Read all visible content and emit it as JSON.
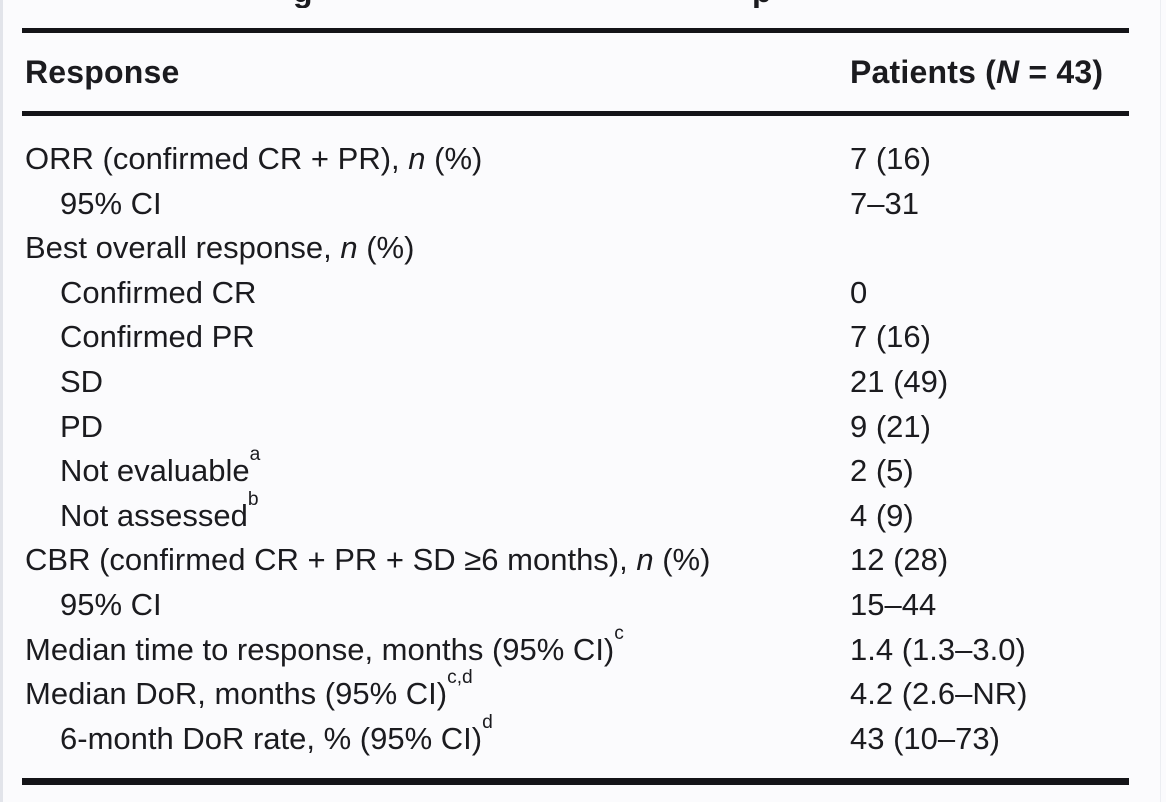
{
  "colors": {
    "background": "#fbfbfd",
    "text": "#1b1b1f",
    "rule": "#141418"
  },
  "cropped_title": {
    "fragment_1": "g",
    "fragment_2": "p"
  },
  "table": {
    "header": {
      "response": [
        {
          "t": "Response"
        }
      ],
      "patients": [
        {
          "t": "Patients ("
        },
        {
          "t": "N",
          "i": true
        },
        {
          "t": " = 43)"
        }
      ]
    },
    "rows": [
      {
        "indent": 0,
        "label": [
          {
            "t": "ORR (confirmed CR + PR), "
          },
          {
            "t": "n",
            "i": true
          },
          {
            "t": " (%)"
          }
        ],
        "value": "7 (16)"
      },
      {
        "indent": 1,
        "label": [
          {
            "t": "95% CI"
          }
        ],
        "value": "7–31"
      },
      {
        "indent": 0,
        "label": [
          {
            "t": "Best overall response, "
          },
          {
            "t": "n",
            "i": true
          },
          {
            "t": " (%)"
          }
        ],
        "value": ""
      },
      {
        "indent": 1,
        "label": [
          {
            "t": "Confirmed CR"
          }
        ],
        "value": "0"
      },
      {
        "indent": 1,
        "label": [
          {
            "t": "Confirmed PR"
          }
        ],
        "value": "7 (16)"
      },
      {
        "indent": 1,
        "label": [
          {
            "t": "SD"
          }
        ],
        "value": "21 (49)"
      },
      {
        "indent": 1,
        "label": [
          {
            "t": "PD"
          }
        ],
        "value": "9 (21)"
      },
      {
        "indent": 1,
        "label": [
          {
            "t": "Not evaluable"
          },
          {
            "t": "a",
            "sup": true
          }
        ],
        "value": "2 (5)"
      },
      {
        "indent": 1,
        "label": [
          {
            "t": "Not assessed"
          },
          {
            "t": "b",
            "sup": true
          }
        ],
        "value": "4 (9)"
      },
      {
        "indent": 0,
        "label": [
          {
            "t": "CBR (confirmed CR + PR + SD ≥6 months), "
          },
          {
            "t": "n",
            "i": true
          },
          {
            "t": " (%)"
          }
        ],
        "value": "12 (28)"
      },
      {
        "indent": 1,
        "label": [
          {
            "t": "95% CI"
          }
        ],
        "value": "15–44"
      },
      {
        "indent": 0,
        "label": [
          {
            "t": "Median time to response, months (95% CI)"
          },
          {
            "t": "c",
            "sup": true
          }
        ],
        "value": "1.4 (1.3–3.0)"
      },
      {
        "indent": 0,
        "label": [
          {
            "t": "Median DoR, months (95% CI)"
          },
          {
            "t": "c,d",
            "sup": true
          }
        ],
        "value": "4.2 (2.6–NR)"
      },
      {
        "indent": 1,
        "label": [
          {
            "t": "6-month DoR rate, % (95% CI)"
          },
          {
            "t": "d",
            "sup": true
          }
        ],
        "value": "43 (10–73)"
      }
    ]
  }
}
